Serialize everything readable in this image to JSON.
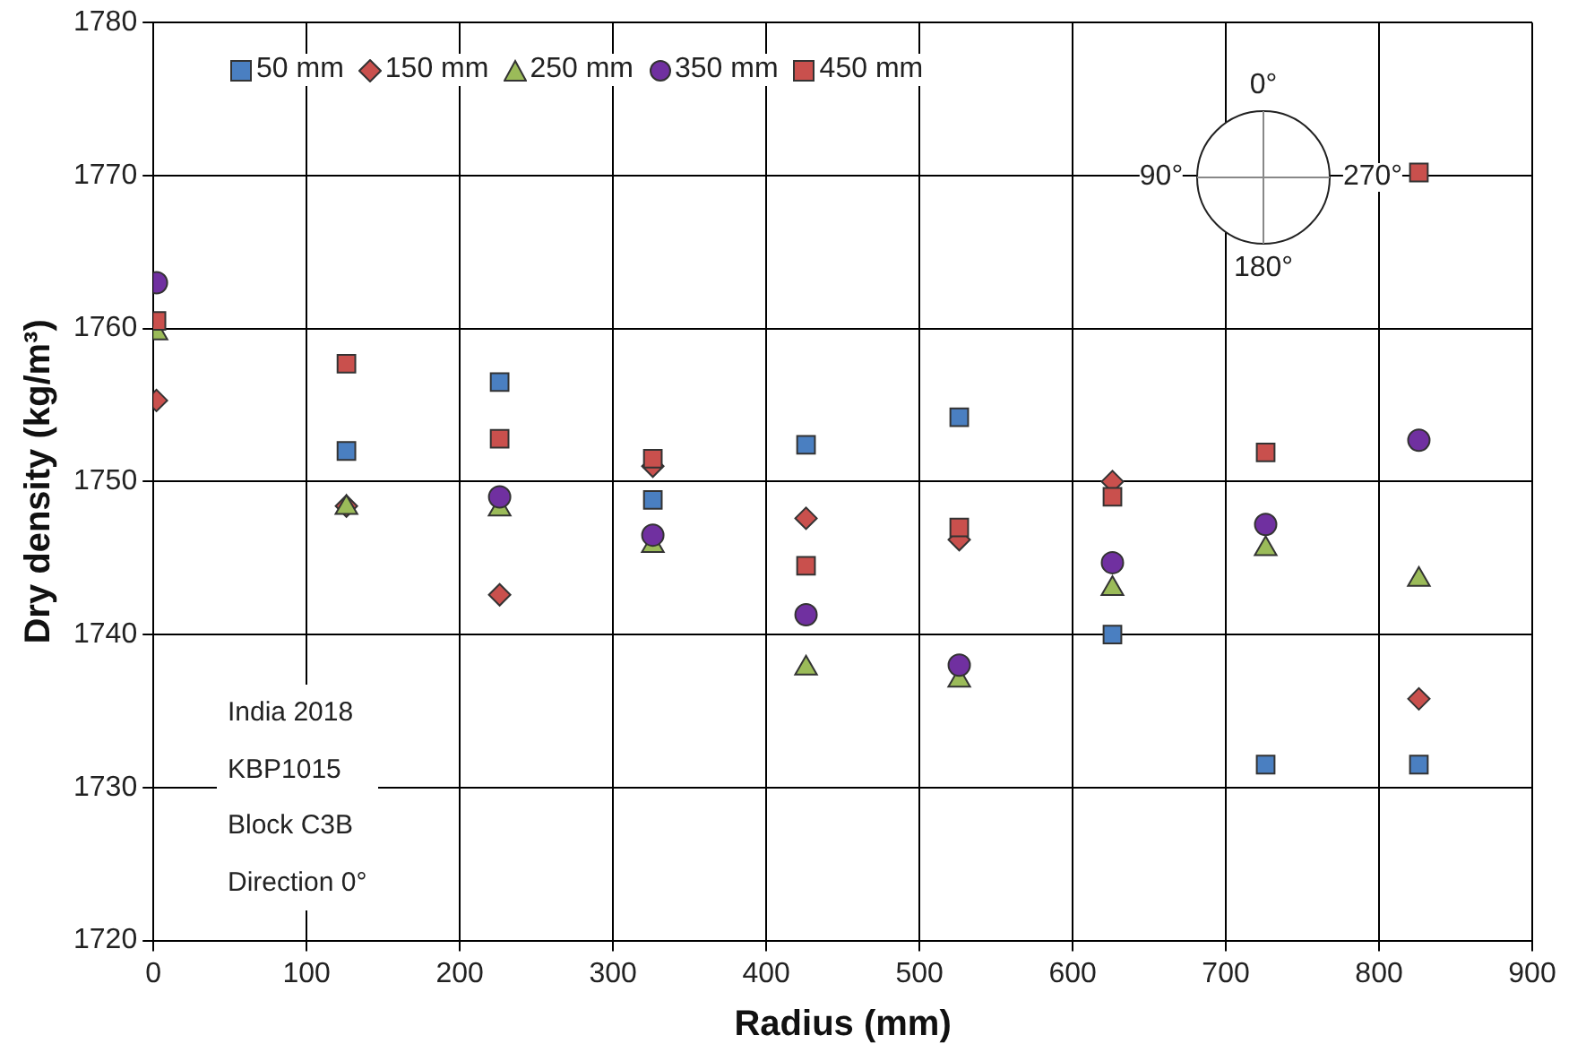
{
  "chart_data": {
    "type": "scatter",
    "xlabel": "Radius (mm)",
    "ylabel": "Dry density (kg/m³)",
    "x": [
      2,
      126,
      226,
      326,
      426,
      526,
      626,
      726,
      826
    ],
    "series": [
      {
        "name": "50 mm",
        "color": "#4a7fc1",
        "marker": "square",
        "values": [
          null,
          1752.0,
          1756.5,
          1748.8,
          1752.4,
          1754.2,
          1740.0,
          1731.5,
          1731.5
        ]
      },
      {
        "name": "150 mm",
        "color": "#c9504d",
        "marker": "diamond",
        "values": [
          1755.3,
          1748.4,
          1742.6,
          1751.0,
          1747.6,
          1746.2,
          1750.0,
          null,
          1735.8
        ]
      },
      {
        "name": "250 mm",
        "color": "#9bbb59",
        "marker": "triangle",
        "values": [
          1759.7,
          1748.3,
          1748.2,
          1745.8,
          1737.8,
          1737.0,
          1743.0,
          1745.6,
          1743.6
        ]
      },
      {
        "name": "350 mm",
        "color": "#7030a0",
        "marker": "circle",
        "values": [
          1763.0,
          null,
          1749.0,
          1746.5,
          1741.3,
          1738.0,
          1744.7,
          1747.2,
          1752.7
        ]
      },
      {
        "name": "450 mm",
        "color": "#c9504d",
        "marker": "square",
        "values": [
          1760.5,
          1757.7,
          1752.8,
          1751.5,
          1744.5,
          1747.0,
          1749.0,
          1751.9,
          1770.2
        ]
      }
    ],
    "xlim": [
      0,
      900
    ],
    "xticks": [
      0,
      100,
      200,
      300,
      400,
      500,
      600,
      700,
      800,
      900
    ],
    "ylim": [
      1720,
      1780
    ],
    "yticks": [
      1720,
      1730,
      1740,
      1750,
      1760,
      1770,
      1780
    ],
    "grid": true,
    "legend": "top left",
    "annotations": [
      "India 2018",
      "KBP1015",
      "Block C3B",
      "Direction 0°",
      "0°",
      "90°",
      "180°",
      "270°"
    ]
  }
}
